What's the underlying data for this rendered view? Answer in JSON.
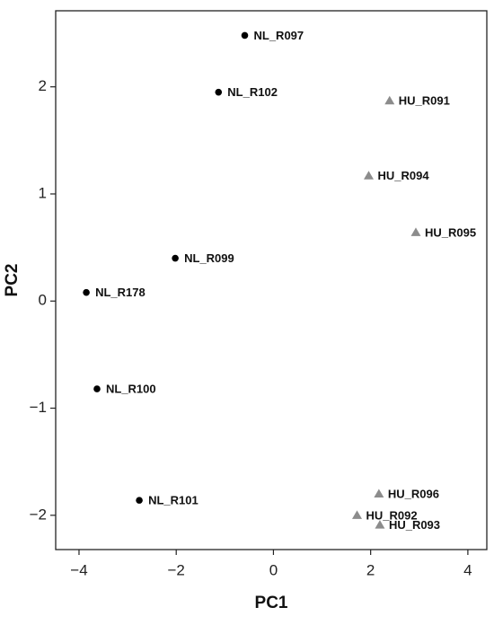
{
  "chart_data": {
    "type": "scatter",
    "xlabel": "PC1",
    "ylabel": "PC2",
    "xlim": [
      -4.48,
      4.39
    ],
    "ylim": [
      -2.32,
      2.71
    ],
    "xticks": [
      {
        "value": -4,
        "label": "−4"
      },
      {
        "value": -2,
        "label": "−2"
      },
      0,
      2,
      4
    ],
    "yticks": [
      {
        "value": -2,
        "label": "−2"
      },
      {
        "value": -1,
        "label": "−1"
      },
      0,
      1,
      2
    ],
    "grid": false,
    "series": [
      {
        "color": "#000000",
        "marker": "circle",
        "labels": [
          "NL_R097",
          "NL_R102",
          "NL_R099",
          "NL_R178",
          "NL_R100",
          "NL_R101"
        ],
        "x": [
          -0.59,
          -1.13,
          -2.02,
          -3.85,
          -3.63,
          -2.76
        ],
        "values": [
          2.48,
          1.95,
          0.4,
          0.08,
          -0.82,
          -1.86
        ]
      },
      {
        "color": "#8c8c8c",
        "marker": "triangle",
        "labels": [
          "HU_R091",
          "HU_R094",
          "HU_R095",
          "HU_R096",
          "HU_R092",
          "HU_R093"
        ],
        "x": [
          2.39,
          1.96,
          2.93,
          2.17,
          1.72,
          2.19
        ],
        "values": [
          1.87,
          1.17,
          0.64,
          -1.8,
          -2.0,
          -2.09
        ]
      }
    ]
  }
}
